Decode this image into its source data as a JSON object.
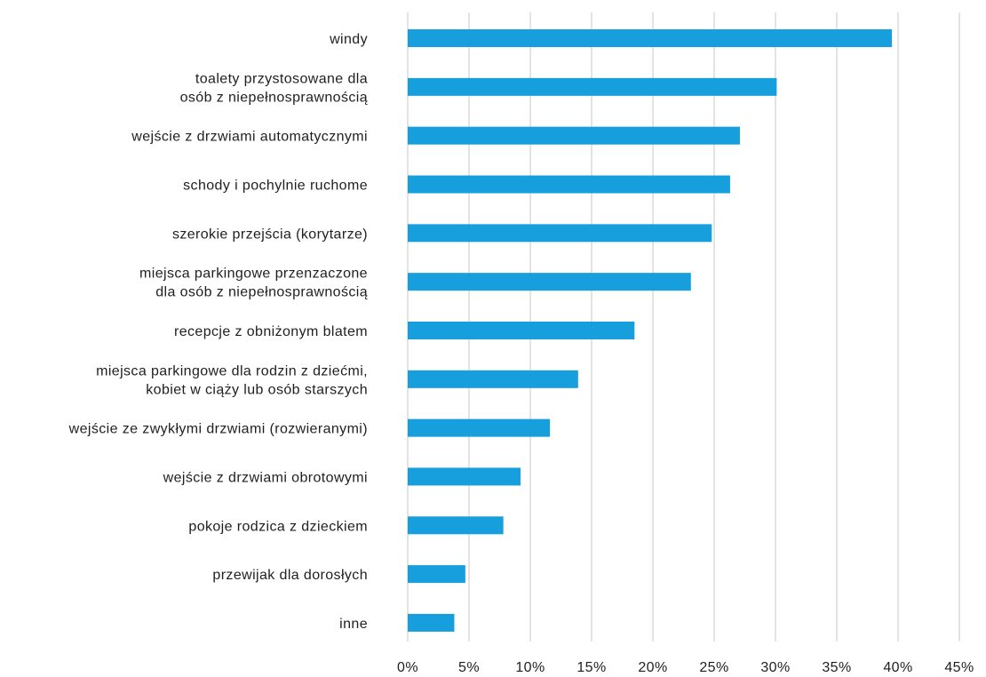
{
  "chart_data": {
    "type": "bar",
    "orientation": "horizontal",
    "categories": [
      [
        "windy"
      ],
      [
        "toalety przystosowane dla",
        "osób z niepełnosprawnością"
      ],
      [
        "wejście z drzwiami automatycznymi"
      ],
      [
        "schody i pochylnie ruchome"
      ],
      [
        "szerokie przejścia (korytarze)"
      ],
      [
        "miejsca parkingowe przenzaczone",
        "dla osób z niepełnosprawnością"
      ],
      [
        "recepcje z obniżonym blatem"
      ],
      [
        "miejsca parkingowe dla rodzin z dziećmi,",
        "kobiet w ciąży lub osób starszych"
      ],
      [
        "wejście ze zwykłymi drzwiami (rozwieranymi)"
      ],
      [
        "wejście z drzwiami obrotowymi"
      ],
      [
        "pokoje rodzica z dzieckiem"
      ],
      [
        "przewijak dla dorosłych"
      ],
      [
        "inne"
      ]
    ],
    "values": [
      39.5,
      30.1,
      27.1,
      26.3,
      24.8,
      23.1,
      18.5,
      13.9,
      11.6,
      9.2,
      7.8,
      4.7,
      3.8
    ],
    "xlim": [
      0,
      45
    ],
    "xticks": [
      0,
      5,
      10,
      15,
      20,
      25,
      30,
      35,
      40,
      45
    ],
    "xtick_labels": [
      "0%",
      "5%",
      "10%",
      "15%",
      "20%",
      "25%",
      "30%",
      "35%",
      "40%",
      "45%"
    ],
    "grid": "vertical",
    "bar_color": "#169fdc",
    "title": "",
    "xlabel": "",
    "ylabel": ""
  }
}
